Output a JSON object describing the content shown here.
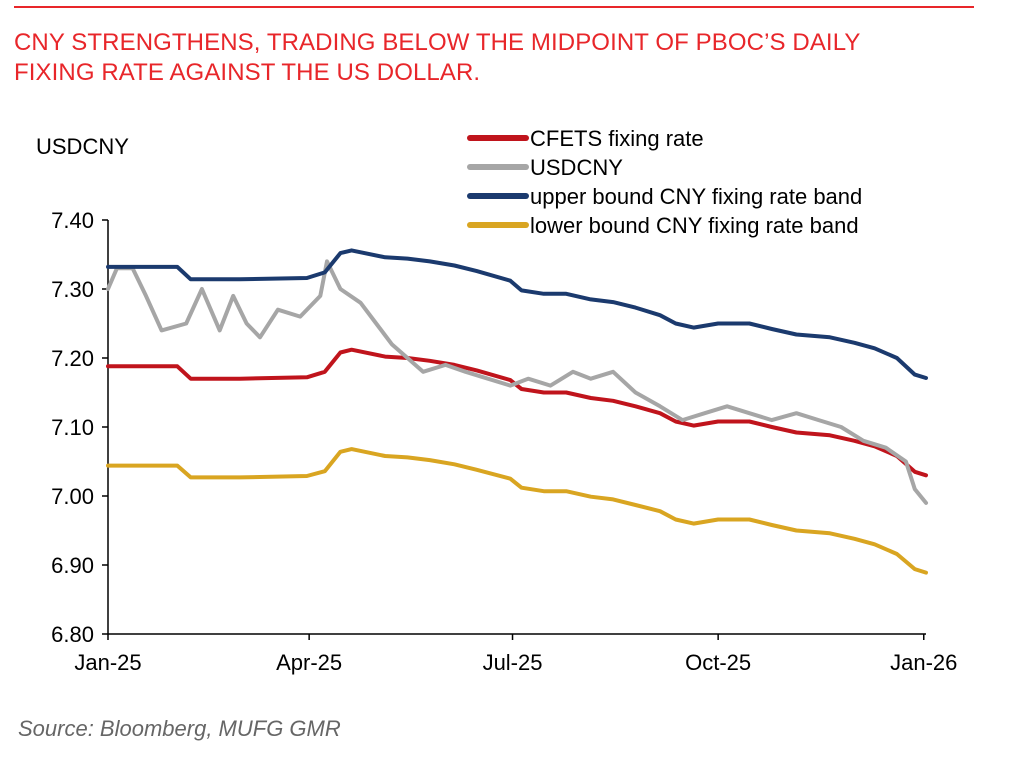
{
  "title_line1": "CNY STRENGTHENS, TRADING BELOW THE MIDPOINT OF PBOC’S DAILY",
  "title_line2": "FIXING RATE AGAINST THE US DOLLAR.",
  "source": "Source: Bloomberg, MUFG GMR",
  "chart_data": {
    "type": "line",
    "ylabel": "USDCNY",
    "ylim": [
      6.8,
      7.4
    ],
    "yticks": [
      "7.40",
      "7.30",
      "7.20",
      "7.10",
      "7.00",
      "6.90",
      "6.80"
    ],
    "ytick_values": [
      7.4,
      7.3,
      7.2,
      7.1,
      7.0,
      6.9,
      6.8
    ],
    "xticks": [
      "Jan-25",
      "Apr-25",
      "Jul-25",
      "Oct-25",
      "Jan-26"
    ],
    "xtick_dates": [
      "2025-01-01",
      "2025-04-01",
      "2025-07-01",
      "2025-10-01",
      "2026-01-01"
    ],
    "x_range": [
      "2025-01-01",
      "2026-01-02"
    ],
    "legend_position": "top-right",
    "grid": false,
    "series": [
      {
        "name": "CFETS fixing rate",
        "color": "#c0141c",
        "points": [
          [
            "2025-01-01",
            7.188
          ],
          [
            "2025-02-01",
            7.188
          ],
          [
            "2025-02-07",
            7.17
          ],
          [
            "2025-03-01",
            7.17
          ],
          [
            "2025-03-31",
            7.172
          ],
          [
            "2025-04-08",
            7.18
          ],
          [
            "2025-04-15",
            7.208
          ],
          [
            "2025-04-20",
            7.212
          ],
          [
            "2025-05-05",
            7.202
          ],
          [
            "2025-05-15",
            7.2
          ],
          [
            "2025-05-25",
            7.196
          ],
          [
            "2025-06-05",
            7.19
          ],
          [
            "2025-06-15",
            7.182
          ],
          [
            "2025-06-30",
            7.168
          ],
          [
            "2025-07-05",
            7.155
          ],
          [
            "2025-07-15",
            7.15
          ],
          [
            "2025-07-25",
            7.15
          ],
          [
            "2025-08-05",
            7.142
          ],
          [
            "2025-08-15",
            7.138
          ],
          [
            "2025-08-25",
            7.13
          ],
          [
            "2025-09-05",
            7.12
          ],
          [
            "2025-09-12",
            7.108
          ],
          [
            "2025-09-20",
            7.102
          ],
          [
            "2025-10-01",
            7.108
          ],
          [
            "2025-10-15",
            7.108
          ],
          [
            "2025-10-25",
            7.1
          ],
          [
            "2025-11-05",
            7.092
          ],
          [
            "2025-11-20",
            7.088
          ],
          [
            "2025-12-01",
            7.08
          ],
          [
            "2025-12-10",
            7.072
          ],
          [
            "2025-12-20",
            7.058
          ],
          [
            "2025-12-28",
            7.035
          ],
          [
            "2026-01-02",
            7.03
          ]
        ]
      },
      {
        "name": "USDCNY",
        "color": "#a6a6a6",
        "points": [
          [
            "2025-01-01",
            7.3
          ],
          [
            "2025-01-05",
            7.33
          ],
          [
            "2025-01-12",
            7.33
          ],
          [
            "2025-01-18",
            7.29
          ],
          [
            "2025-01-25",
            7.24
          ],
          [
            "2025-02-05",
            7.25
          ],
          [
            "2025-02-12",
            7.3
          ],
          [
            "2025-02-20",
            7.24
          ],
          [
            "2025-02-26",
            7.29
          ],
          [
            "2025-03-04",
            7.25
          ],
          [
            "2025-03-10",
            7.23
          ],
          [
            "2025-03-18",
            7.27
          ],
          [
            "2025-03-28",
            7.26
          ],
          [
            "2025-04-06",
            7.29
          ],
          [
            "2025-04-09",
            7.34
          ],
          [
            "2025-04-15",
            7.3
          ],
          [
            "2025-04-24",
            7.28
          ],
          [
            "2025-05-01",
            7.25
          ],
          [
            "2025-05-08",
            7.22
          ],
          [
            "2025-05-15",
            7.2
          ],
          [
            "2025-05-22",
            7.18
          ],
          [
            "2025-06-01",
            7.19
          ],
          [
            "2025-06-10",
            7.18
          ],
          [
            "2025-06-20",
            7.17
          ],
          [
            "2025-06-30",
            7.16
          ],
          [
            "2025-07-08",
            7.17
          ],
          [
            "2025-07-18",
            7.16
          ],
          [
            "2025-07-28",
            7.18
          ],
          [
            "2025-08-05",
            7.17
          ],
          [
            "2025-08-15",
            7.18
          ],
          [
            "2025-08-25",
            7.15
          ],
          [
            "2025-09-05",
            7.13
          ],
          [
            "2025-09-15",
            7.11
          ],
          [
            "2025-09-25",
            7.12
          ],
          [
            "2025-10-05",
            7.13
          ],
          [
            "2025-10-15",
            7.12
          ],
          [
            "2025-10-25",
            7.11
          ],
          [
            "2025-11-05",
            7.12
          ],
          [
            "2025-11-15",
            7.11
          ],
          [
            "2025-11-25",
            7.1
          ],
          [
            "2025-12-05",
            7.08
          ],
          [
            "2025-12-15",
            7.07
          ],
          [
            "2025-12-24",
            7.05
          ],
          [
            "2025-12-28",
            7.01
          ],
          [
            "2026-01-02",
            6.99
          ]
        ]
      },
      {
        "name": "upper bound CNY fixing rate band",
        "color": "#1b3a6e",
        "points": [
          [
            "2025-01-01",
            7.332
          ],
          [
            "2025-02-01",
            7.332
          ],
          [
            "2025-02-07",
            7.314
          ],
          [
            "2025-03-01",
            7.314
          ],
          [
            "2025-03-31",
            7.316
          ],
          [
            "2025-04-08",
            7.324
          ],
          [
            "2025-04-15",
            7.352
          ],
          [
            "2025-04-20",
            7.356
          ],
          [
            "2025-05-05",
            7.346
          ],
          [
            "2025-05-15",
            7.344
          ],
          [
            "2025-05-25",
            7.34
          ],
          [
            "2025-06-05",
            7.334
          ],
          [
            "2025-06-15",
            7.326
          ],
          [
            "2025-06-30",
            7.312
          ],
          [
            "2025-07-05",
            7.298
          ],
          [
            "2025-07-15",
            7.293
          ],
          [
            "2025-07-25",
            7.293
          ],
          [
            "2025-08-05",
            7.285
          ],
          [
            "2025-08-15",
            7.281
          ],
          [
            "2025-08-25",
            7.273
          ],
          [
            "2025-09-05",
            7.262
          ],
          [
            "2025-09-12",
            7.25
          ],
          [
            "2025-09-20",
            7.244
          ],
          [
            "2025-10-01",
            7.25
          ],
          [
            "2025-10-15",
            7.25
          ],
          [
            "2025-10-25",
            7.242
          ],
          [
            "2025-11-05",
            7.234
          ],
          [
            "2025-11-20",
            7.23
          ],
          [
            "2025-12-01",
            7.222
          ],
          [
            "2025-12-10",
            7.214
          ],
          [
            "2025-12-20",
            7.2
          ],
          [
            "2025-12-28",
            7.176
          ],
          [
            "2026-01-02",
            7.171
          ]
        ]
      },
      {
        "name": "lower bound CNY fixing rate band",
        "color": "#d9a521",
        "points": [
          [
            "2025-01-01",
            7.044
          ],
          [
            "2025-02-01",
            7.044
          ],
          [
            "2025-02-07",
            7.027
          ],
          [
            "2025-03-01",
            7.027
          ],
          [
            "2025-03-31",
            7.029
          ],
          [
            "2025-04-08",
            7.036
          ],
          [
            "2025-04-15",
            7.064
          ],
          [
            "2025-04-20",
            7.068
          ],
          [
            "2025-05-05",
            7.058
          ],
          [
            "2025-05-15",
            7.056
          ],
          [
            "2025-05-25",
            7.052
          ],
          [
            "2025-06-05",
            7.046
          ],
          [
            "2025-06-15",
            7.038
          ],
          [
            "2025-06-30",
            7.025
          ],
          [
            "2025-07-05",
            7.012
          ],
          [
            "2025-07-15",
            7.007
          ],
          [
            "2025-07-25",
            7.007
          ],
          [
            "2025-08-05",
            6.999
          ],
          [
            "2025-08-15",
            6.995
          ],
          [
            "2025-08-25",
            6.987
          ],
          [
            "2025-09-05",
            6.978
          ],
          [
            "2025-09-12",
            6.966
          ],
          [
            "2025-09-20",
            6.96
          ],
          [
            "2025-10-01",
            6.966
          ],
          [
            "2025-10-15",
            6.966
          ],
          [
            "2025-10-25",
            6.958
          ],
          [
            "2025-11-05",
            6.95
          ],
          [
            "2025-11-20",
            6.946
          ],
          [
            "2025-12-01",
            6.938
          ],
          [
            "2025-12-10",
            6.93
          ],
          [
            "2025-12-20",
            6.916
          ],
          [
            "2025-12-28",
            6.894
          ],
          [
            "2026-01-02",
            6.889
          ]
        ]
      }
    ]
  }
}
